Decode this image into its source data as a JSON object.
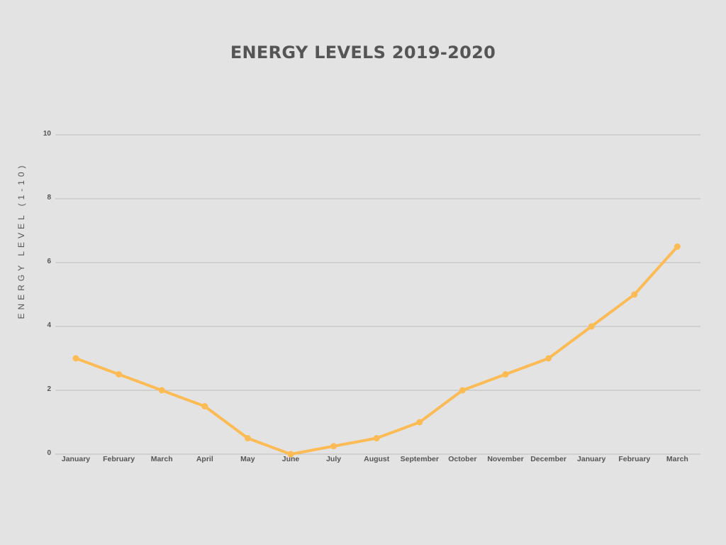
{
  "chart_data": {
    "type": "line",
    "title": "ENERGY LEVELS 2019-2020",
    "xlabel": "",
    "ylabel": "ENERGY LEVEL (1-10)",
    "categories": [
      "January",
      "February",
      "March",
      "April",
      "May",
      "June",
      "July",
      "August",
      "September",
      "October",
      "November",
      "December",
      "January",
      "February",
      "March"
    ],
    "series": [
      {
        "values": [
          3,
          2.5,
          2,
          1.5,
          0.5,
          0,
          0.25,
          0.5,
          1,
          2,
          2.5,
          3,
          4,
          5,
          6.5
        ]
      }
    ],
    "ylim": [
      0,
      10
    ],
    "yticks": [
      "0",
      "2",
      "4",
      "6",
      "8",
      "10"
    ],
    "grid": true,
    "legend": "none",
    "colors": {
      "line": "#fdbb55",
      "grid": "#bdbdbd",
      "text": "#555555",
      "background": "#e3e3e3"
    }
  }
}
